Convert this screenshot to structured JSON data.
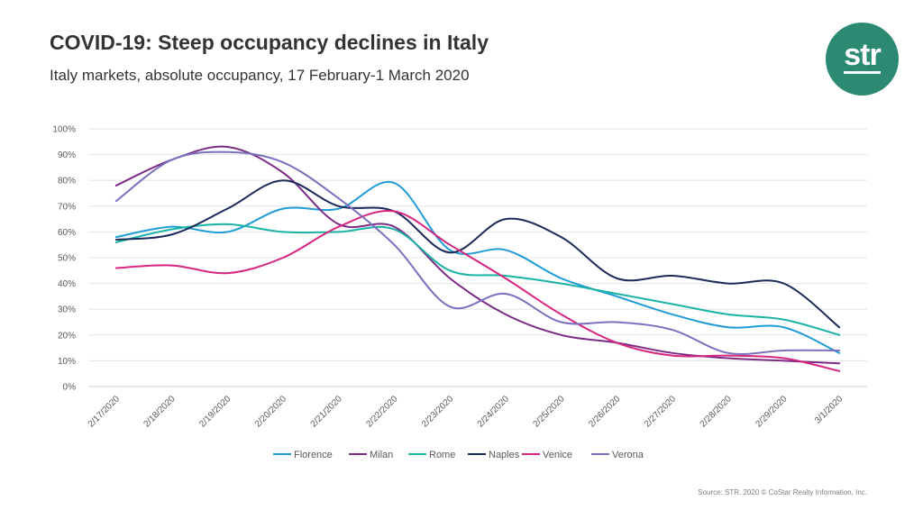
{
  "header": {
    "title": "COVID-19: Steep occupancy declines in Italy",
    "subtitle": "Italy markets, absolute occupancy, 17 February-1 March 2020"
  },
  "logo": {
    "text": "str",
    "color": "#2c8a73"
  },
  "footer": {
    "source": "Source: STR. 2020 © CoStar Realty Information, Inc."
  },
  "chart_data": {
    "type": "line",
    "title": "COVID-19: Steep occupancy declines in Italy",
    "subtitle": "Italy markets, absolute occupancy, 17 February-1 March 2020",
    "x": [
      "2/17/2020",
      "2/18/2020",
      "2/19/2020",
      "2/20/2020",
      "2/21/2020",
      "2/22/2020",
      "2/23/2020",
      "2/24/2020",
      "2/25/2020",
      "2/26/2020",
      "2/27/2020",
      "2/28/2020",
      "2/29/2020",
      "3/1/2020"
    ],
    "xlabel": "",
    "ylabel": "",
    "ylim": [
      0,
      100
    ],
    "yticks": [
      "0%",
      "10%",
      "20%",
      "30%",
      "40%",
      "50%",
      "60%",
      "70%",
      "80%",
      "90%",
      "100%"
    ],
    "grid": true,
    "smooth": true,
    "legend": "bottom",
    "series": [
      {
        "name": "Florence",
        "color": "#1f9bd7",
        "values": [
          58,
          62,
          60,
          69,
          69,
          79,
          53,
          53,
          42,
          35,
          28,
          23,
          23,
          13
        ]
      },
      {
        "name": "Milan",
        "color": "#7b2b86",
        "values": [
          78,
          88,
          93,
          83,
          63,
          62,
          42,
          28,
          20,
          17,
          13,
          11,
          10,
          9
        ]
      },
      {
        "name": "Rome",
        "color": "#1ab3a6",
        "values": [
          56,
          61,
          63,
          60,
          60,
          61,
          45,
          43,
          40,
          36,
          32,
          28,
          26,
          20
        ]
      },
      {
        "name": "Naples",
        "color": "#1c2a5a",
        "values": [
          57,
          59,
          69,
          80,
          70,
          68,
          52,
          65,
          58,
          42,
          43,
          40,
          40,
          23
        ]
      },
      {
        "name": "Venice",
        "color": "#d6267f",
        "values": [
          46,
          47,
          44,
          50,
          62,
          68,
          55,
          42,
          28,
          17,
          12,
          12,
          11,
          6
        ]
      },
      {
        "name": "Verona",
        "color": "#7b70bf",
        "values": [
          72,
          88,
          91,
          87,
          73,
          55,
          31,
          36,
          25,
          25,
          22,
          13,
          14,
          14
        ]
      }
    ]
  }
}
